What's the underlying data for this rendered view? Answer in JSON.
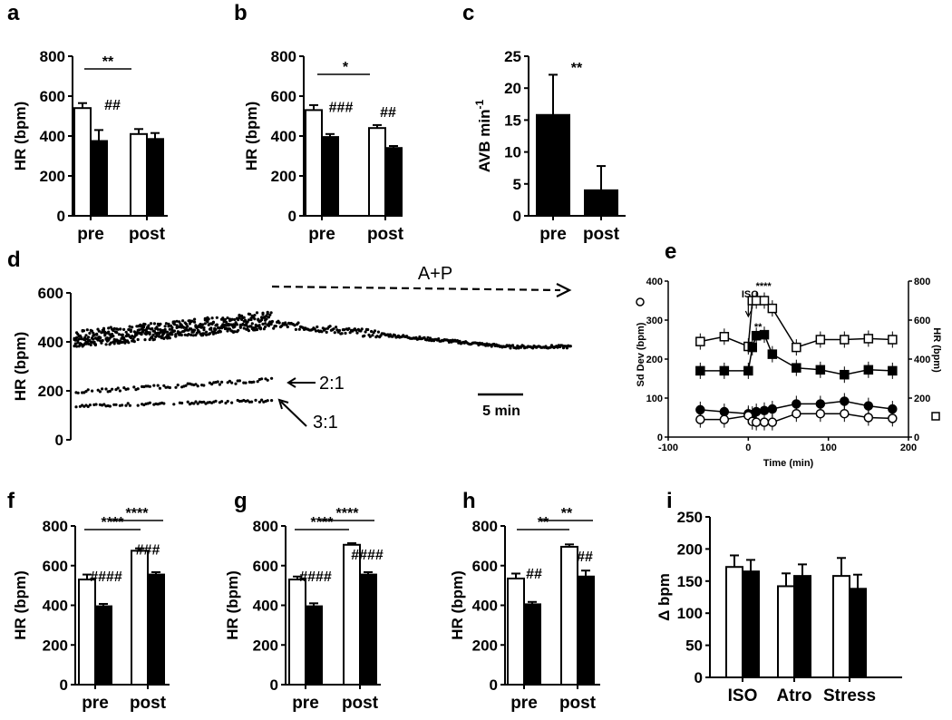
{
  "colors": {
    "filled": "#000000",
    "open": "#ffffff",
    "stroke": "#000000"
  },
  "chart_data": [
    {
      "panel": "a",
      "type": "bar",
      "ylabel": "HR (bpm)",
      "ylim": [
        0,
        800
      ],
      "yticks": [
        "0",
        "200",
        "400",
        "600",
        "800"
      ],
      "categories": [
        "pre",
        "post"
      ],
      "series": [
        {
          "fill": "open",
          "values": [
            540,
            410
          ],
          "errors": [
            25,
            25
          ]
        },
        {
          "fill": "filled",
          "values": [
            375,
            385
          ],
          "errors": [
            55,
            30
          ]
        }
      ],
      "annotations": {
        "bracket": "**",
        "marks": [
          "##"
        ]
      }
    },
    {
      "panel": "b",
      "type": "bar",
      "ylabel": "HR (bpm)",
      "ylim": [
        0,
        800
      ],
      "yticks": [
        "0",
        "200",
        "400",
        "600",
        "800"
      ],
      "categories": [
        "pre",
        "post"
      ],
      "series": [
        {
          "fill": "open",
          "values": [
            530,
            440
          ],
          "errors": [
            25,
            15
          ]
        },
        {
          "fill": "filled",
          "values": [
            395,
            340
          ],
          "errors": [
            15,
            10
          ]
        }
      ],
      "annotations": {
        "bracket": "*",
        "marks": [
          "###",
          "##"
        ]
      }
    },
    {
      "panel": "c",
      "type": "bar",
      "ylabel": "AVB min",
      "ylabel_sup": "-1",
      "ylim": [
        0,
        25
      ],
      "yticks": [
        "0",
        "5",
        "10",
        "15",
        "20",
        "25"
      ],
      "categories": [
        "pre",
        "post"
      ],
      "series": [
        {
          "fill": "filled",
          "values": [
            15.8,
            4.0
          ],
          "errors": [
            6.3,
            3.8
          ]
        }
      ],
      "annotations": {
        "marks": [
          "**"
        ]
      }
    },
    {
      "panel": "d",
      "type": "scatter",
      "ylabel": "HR (bpm)",
      "ylim": [
        0,
        600
      ],
      "yticks": [
        "0",
        "200",
        "400",
        "600"
      ],
      "labels": {
        "treatment": "A+P",
        "ratio_2": "2:1",
        "ratio_3": "3:1",
        "scale": "5 min"
      },
      "series": [
        {
          "name": "sinus",
          "values_approx": "~410 baseline rising to ~500, decaying to ~380 after A+P"
        },
        {
          "name": "2:1",
          "values_approx": "~200 to ~245"
        },
        {
          "name": "3:1",
          "values_approx": "~140 to ~160"
        }
      ]
    },
    {
      "panel": "e",
      "type": "line",
      "xlabel": "Time (min)",
      "ylabel_left": "Sd Dev (bpm)",
      "ylabel_right": "HR (bpm)",
      "xlim": [
        -100,
        200
      ],
      "ylim_left": [
        0,
        400
      ],
      "ylim_right": [
        0,
        800
      ],
      "xticks": [
        "-100",
        "0",
        "100",
        "200"
      ],
      "yticks_left": [
        "0",
        "100",
        "200",
        "300",
        "400"
      ],
      "yticks_right": [
        "0",
        "200",
        "400",
        "600",
        "800"
      ],
      "marker_label": "ISO",
      "sig_labels": [
        "****",
        "**"
      ],
      "x": [
        -60,
        -30,
        0,
        5,
        10,
        20,
        30,
        60,
        90,
        120,
        150,
        180
      ],
      "series": [
        {
          "name": "HR open square",
          "axis": "right",
          "values": [
            490,
            515,
            465,
            700,
            700,
            700,
            660,
            460,
            500,
            500,
            505,
            500
          ]
        },
        {
          "name": "HR filled square",
          "axis": "right",
          "values": [
            340,
            340,
            340,
            460,
            520,
            525,
            425,
            355,
            345,
            320,
            345,
            340
          ]
        },
        {
          "name": "SD filled circle",
          "axis": "left",
          "values": [
            70,
            65,
            60,
            58,
            65,
            68,
            72,
            85,
            85,
            92,
            80,
            72
          ]
        },
        {
          "name": "SD open circle",
          "axis": "left",
          "values": [
            45,
            45,
            55,
            40,
            38,
            38,
            38,
            60,
            60,
            60,
            50,
            48
          ]
        }
      ]
    },
    {
      "panel": "f",
      "type": "bar",
      "ylabel": "HR (bpm)",
      "ylim": [
        0,
        800
      ],
      "yticks": [
        "0",
        "200",
        "400",
        "600",
        "800"
      ],
      "categories": [
        "pre",
        "post"
      ],
      "series": [
        {
          "fill": "open",
          "values": [
            530,
            675
          ],
          "errors": [
            25,
            12
          ]
        },
        {
          "fill": "filled",
          "values": [
            395,
            555
          ],
          "errors": [
            12,
            12
          ]
        }
      ],
      "annotations": {
        "brackets": [
          "****",
          "****"
        ],
        "marks": [
          "####",
          "###"
        ]
      }
    },
    {
      "panel": "g",
      "type": "bar",
      "ylabel": "HR (bpm)",
      "ylim": [
        0,
        800
      ],
      "yticks": [
        "0",
        "200",
        "400",
        "600",
        "800"
      ],
      "categories": [
        "pre",
        "post"
      ],
      "series": [
        {
          "fill": "open",
          "values": [
            530,
            705
          ],
          "errors": [
            15,
            8
          ]
        },
        {
          "fill": "filled",
          "values": [
            395,
            555
          ],
          "errors": [
            15,
            12
          ]
        }
      ],
      "annotations": {
        "brackets": [
          "****",
          "****"
        ],
        "marks": [
          "####",
          "####"
        ]
      }
    },
    {
      "panel": "h",
      "type": "bar",
      "ylabel": "HR (bpm)",
      "ylim": [
        0,
        800
      ],
      "yticks": [
        "0",
        "200",
        "400",
        "600",
        "800"
      ],
      "categories": [
        "pre",
        "post"
      ],
      "series": [
        {
          "fill": "open",
          "values": [
            535,
            695
          ],
          "errors": [
            25,
            12
          ]
        },
        {
          "fill": "filled",
          "values": [
            405,
            545
          ],
          "errors": [
            12,
            30
          ]
        }
      ],
      "annotations": {
        "brackets": [
          "**",
          "**"
        ],
        "marks": [
          "##",
          "##"
        ]
      }
    },
    {
      "panel": "i",
      "type": "bar",
      "ylabel": "Δ bpm",
      "ylim": [
        0,
        250
      ],
      "yticks": [
        "0",
        "50",
        "100",
        "150",
        "200",
        "250"
      ],
      "categories": [
        "ISO",
        "Atro",
        "Stress"
      ],
      "series": [
        {
          "fill": "open",
          "values": [
            172,
            142,
            158
          ],
          "errors": [
            18,
            20,
            28
          ]
        },
        {
          "fill": "filled",
          "values": [
            165,
            158,
            138
          ],
          "errors": [
            18,
            18,
            22
          ]
        }
      ]
    }
  ]
}
